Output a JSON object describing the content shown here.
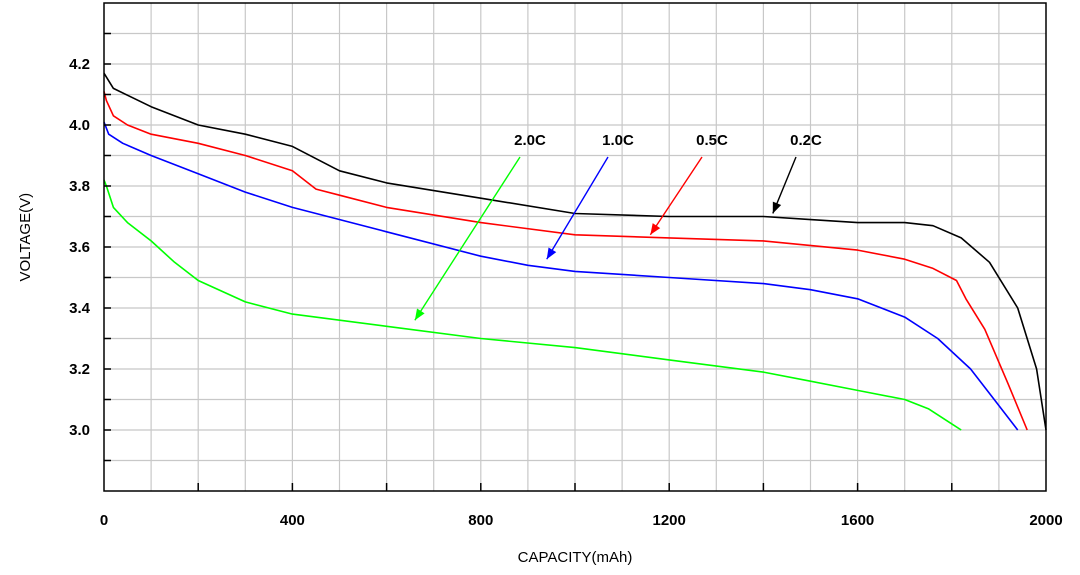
{
  "chart_data": {
    "type": "line",
    "title": "",
    "xlabel": "CAPACITY(mAh)",
    "ylabel": "VOLTAGE(V)",
    "xlim": [
      0,
      2000
    ],
    "ylim": [
      2.8,
      4.4
    ],
    "x_ticks": [
      "0",
      "400",
      "800",
      "1200",
      "1600",
      "2000"
    ],
    "y_ticks": [
      "3.0",
      "3.2",
      "3.4",
      "3.6",
      "3.8",
      "4.0",
      "4.2"
    ],
    "grid": true,
    "series": [
      {
        "name": "0.2C",
        "color": "#000000",
        "points": [
          [
            0,
            4.17
          ],
          [
            20,
            4.12
          ],
          [
            100,
            4.06
          ],
          [
            200,
            4.0
          ],
          [
            300,
            3.97
          ],
          [
            400,
            3.93
          ],
          [
            500,
            3.85
          ],
          [
            600,
            3.81
          ],
          [
            800,
            3.76
          ],
          [
            1000,
            3.71
          ],
          [
            1200,
            3.7
          ],
          [
            1400,
            3.7
          ],
          [
            1500,
            3.69
          ],
          [
            1600,
            3.68
          ],
          [
            1700,
            3.68
          ],
          [
            1760,
            3.67
          ],
          [
            1820,
            3.63
          ],
          [
            1880,
            3.55
          ],
          [
            1940,
            3.4
          ],
          [
            1980,
            3.2
          ],
          [
            2000,
            3.0
          ]
        ],
        "label_value": [
          1420,
          3.71
        ]
      },
      {
        "name": "0.5C",
        "color": "#ff0000",
        "points": [
          [
            0,
            4.11
          ],
          [
            5,
            4.08
          ],
          [
            20,
            4.03
          ],
          [
            50,
            4.0
          ],
          [
            100,
            3.97
          ],
          [
            200,
            3.94
          ],
          [
            300,
            3.9
          ],
          [
            400,
            3.85
          ],
          [
            450,
            3.79
          ],
          [
            500,
            3.77
          ],
          [
            600,
            3.73
          ],
          [
            800,
            3.68
          ],
          [
            1000,
            3.64
          ],
          [
            1200,
            3.63
          ],
          [
            1400,
            3.62
          ],
          [
            1600,
            3.59
          ],
          [
            1700,
            3.56
          ],
          [
            1760,
            3.53
          ],
          [
            1810,
            3.49
          ],
          [
            1830,
            3.43
          ],
          [
            1870,
            3.33
          ],
          [
            1920,
            3.15
          ],
          [
            1960,
            3.0
          ]
        ],
        "label_value": [
          1160,
          3.64
        ]
      },
      {
        "name": "1.0C",
        "color": "#0000ff",
        "points": [
          [
            0,
            4.01
          ],
          [
            10,
            3.97
          ],
          [
            40,
            3.94
          ],
          [
            100,
            3.9
          ],
          [
            200,
            3.84
          ],
          [
            300,
            3.78
          ],
          [
            400,
            3.73
          ],
          [
            600,
            3.65
          ],
          [
            800,
            3.57
          ],
          [
            900,
            3.54
          ],
          [
            1000,
            3.52
          ],
          [
            1200,
            3.5
          ],
          [
            1400,
            3.48
          ],
          [
            1500,
            3.46
          ],
          [
            1600,
            3.43
          ],
          [
            1700,
            3.37
          ],
          [
            1770,
            3.3
          ],
          [
            1840,
            3.2
          ],
          [
            1890,
            3.1
          ],
          [
            1940,
            3.0
          ]
        ],
        "label_value": [
          940,
          3.56
        ]
      },
      {
        "name": "2.0C",
        "color": "#00ff00",
        "points": [
          [
            0,
            3.82
          ],
          [
            5,
            3.8
          ],
          [
            20,
            3.73
          ],
          [
            50,
            3.68
          ],
          [
            100,
            3.62
          ],
          [
            150,
            3.55
          ],
          [
            200,
            3.49
          ],
          [
            300,
            3.42
          ],
          [
            400,
            3.38
          ],
          [
            600,
            3.34
          ],
          [
            800,
            3.3
          ],
          [
            1000,
            3.27
          ],
          [
            1200,
            3.23
          ],
          [
            1400,
            3.19
          ],
          [
            1500,
            3.16
          ],
          [
            1600,
            3.13
          ],
          [
            1700,
            3.1
          ],
          [
            1750,
            3.07
          ],
          [
            1800,
            3.02
          ],
          [
            1820,
            3.0
          ]
        ],
        "label_value": [
          660,
          3.36
        ]
      }
    ]
  }
}
